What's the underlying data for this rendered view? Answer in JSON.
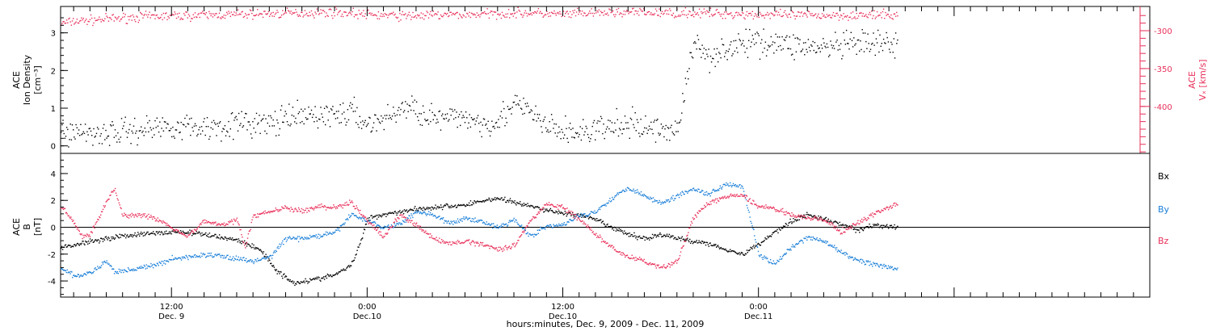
{
  "colors": {
    "black": "#000000",
    "red": "#e8305a",
    "blue": "#1a7fd8"
  },
  "x_axis": {
    "start_hours": 5.2,
    "end_hours": 72,
    "data_end_hours": 56.5,
    "ticks": [
      {
        "time": "12:00",
        "date": "Dec. 9",
        "hours": 12
      },
      {
        "time": "0:00",
        "date": "Dec.10",
        "hours": 24
      },
      {
        "time": "12:00",
        "date": "Dec.10",
        "hours": 36
      },
      {
        "time": "0:00",
        "date": "Dec.11",
        "hours": 48
      }
    ],
    "label": "hours:minutes, Dec. 9, 2009 - Dec. 11, 2009"
  },
  "chart_data": [
    {
      "type": "scatter",
      "panel": "top",
      "left_axis": {
        "label_line1": "ACE",
        "label_line2": "Ion Density",
        "unit": "[cm⁻³]",
        "ylim": [
          -0.2,
          3.7
        ],
        "ticks": [
          "0",
          "1",
          "2",
          "3"
        ]
      },
      "right_axis": {
        "label": "Vₓ [km/s]",
        "label_super": "ACE",
        "ylim": [
          -462,
          -268
        ],
        "ticks": [
          "-300",
          "-350",
          "-400"
        ]
      },
      "series": [
        {
          "color": "red",
          "axis": "right",
          "points": [
            [
              5.2,
              -290
            ],
            [
              6,
              -287
            ],
            [
              8,
              -284
            ],
            [
              10,
              -281
            ],
            [
              12,
              -280
            ],
            [
              14,
              -279
            ],
            [
              16,
              -278
            ],
            [
              18,
              -277
            ],
            [
              20,
              -276
            ],
            [
              22,
              -275
            ],
            [
              24,
              -278
            ],
            [
              26,
              -280
            ],
            [
              28,
              -279
            ],
            [
              30,
              -278
            ],
            [
              32,
              -277
            ],
            [
              34,
              -276
            ],
            [
              36,
              -278
            ],
            [
              38,
              -276
            ],
            [
              40,
              -275
            ],
            [
              42,
              -276
            ],
            [
              44,
              -276
            ],
            [
              46,
              -277
            ],
            [
              48,
              -278
            ],
            [
              50,
              -279
            ],
            [
              52,
              -279
            ],
            [
              54,
              -279
            ],
            [
              56.5,
              -279
            ]
          ]
        },
        {
          "color": "black",
          "axis": "left",
          "points": [
            [
              5.2,
              0.4
            ],
            [
              8,
              0.35
            ],
            [
              10,
              0.45
            ],
            [
              12,
              0.55
            ],
            [
              14,
              0.5
            ],
            [
              16,
              0.6
            ],
            [
              18,
              0.6
            ],
            [
              20,
              0.8
            ],
            [
              22,
              0.85
            ],
            [
              23,
              0.9
            ],
            [
              24,
              0.6
            ],
            [
              25,
              0.7
            ],
            [
              26,
              1.0
            ],
            [
              27,
              1.0
            ],
            [
              28,
              0.75
            ],
            [
              29,
              0.7
            ],
            [
              30,
              0.8
            ],
            [
              31,
              0.6
            ],
            [
              32,
              0.7
            ],
            [
              33,
              1.1
            ],
            [
              34,
              0.9
            ],
            [
              35,
              0.5
            ],
            [
              36,
              0.4
            ],
            [
              37,
              0.35
            ],
            [
              38,
              0.45
            ],
            [
              39,
              0.5
            ],
            [
              40,
              0.6
            ],
            [
              41,
              0.5
            ],
            [
              42,
              0.45
            ],
            [
              43,
              0.45
            ],
            [
              44,
              2.7
            ],
            [
              45,
              2.4
            ],
            [
              46,
              2.6
            ],
            [
              48,
              2.8
            ],
            [
              50,
              2.7
            ],
            [
              52,
              2.6
            ],
            [
              54,
              2.7
            ],
            [
              56.5,
              2.7
            ]
          ]
        }
      ]
    },
    {
      "type": "line",
      "panel": "bottom",
      "y_axis": {
        "label_line1": "ACE",
        "label_line2": "B",
        "unit": "[nT]",
        "ylim": [
          -5.2,
          5.5
        ],
        "ticks": [
          "4",
          "2",
          "0",
          "-2",
          "-4"
        ]
      },
      "zero_line": true,
      "series": [
        {
          "name": "Bx",
          "color": "black",
          "points": [
            [
              5.2,
              -1.5
            ],
            [
              7,
              -1.0
            ],
            [
              9,
              -0.6
            ],
            [
              11,
              -0.4
            ],
            [
              12.5,
              -0.3
            ],
            [
              14,
              -0.5
            ],
            [
              16,
              -0.9
            ],
            [
              17.5,
              -1.7
            ],
            [
              18.5,
              -3.3
            ],
            [
              19.5,
              -4.1
            ],
            [
              21,
              -3.8
            ],
            [
              22,
              -3.5
            ],
            [
              23,
              -2.8
            ],
            [
              23.6,
              -1.0
            ],
            [
              24,
              0.7
            ],
            [
              25,
              1.0
            ],
            [
              26,
              1.2
            ],
            [
              27,
              1.4
            ],
            [
              28,
              1.5
            ],
            [
              29,
              1.6
            ],
            [
              30,
              1.7
            ],
            [
              31,
              2.0
            ],
            [
              32,
              2.2
            ],
            [
              33,
              1.9
            ],
            [
              34,
              1.6
            ],
            [
              35,
              1.3
            ],
            [
              36,
              1.1
            ],
            [
              37,
              0.9
            ],
            [
              38,
              0.6
            ],
            [
              39,
              0.0
            ],
            [
              40,
              -0.5
            ],
            [
              41,
              -0.8
            ],
            [
              42,
              -0.5
            ],
            [
              43,
              -0.8
            ],
            [
              44,
              -1.0
            ],
            [
              45,
              -1.2
            ],
            [
              46,
              -1.6
            ],
            [
              47,
              -2.0
            ],
            [
              48,
              -1.2
            ],
            [
              49,
              -0.3
            ],
            [
              50,
              0.5
            ],
            [
              51,
              1.0
            ],
            [
              52,
              0.6
            ],
            [
              53,
              0.3
            ],
            [
              54,
              -0.2
            ],
            [
              55,
              0.2
            ],
            [
              56.5,
              0.0
            ]
          ]
        },
        {
          "name": "By",
          "color": "blue",
          "points": [
            [
              5.2,
              -3.0
            ],
            [
              6,
              -3.6
            ],
            [
              7,
              -3.4
            ],
            [
              8,
              -2.5
            ],
            [
              8.5,
              -3.3
            ],
            [
              10,
              -3.0
            ],
            [
              11,
              -2.8
            ],
            [
              12,
              -2.3
            ],
            [
              13,
              -2.2
            ],
            [
              14,
              -2.0
            ],
            [
              15,
              -2.1
            ],
            [
              16,
              -2.3
            ],
            [
              17,
              -2.5
            ],
            [
              18,
              -2.2
            ],
            [
              19,
              -0.8
            ],
            [
              20,
              -0.8
            ],
            [
              21,
              -0.6
            ],
            [
              22,
              -0.4
            ],
            [
              23,
              1.0
            ],
            [
              24,
              0.5
            ],
            [
              25,
              0.0
            ],
            [
              26,
              0.3
            ],
            [
              27,
              1.2
            ],
            [
              28,
              1.0
            ],
            [
              29,
              0.3
            ],
            [
              30,
              0.7
            ],
            [
              31,
              0.5
            ],
            [
              32,
              0.0
            ],
            [
              33,
              0.6
            ],
            [
              34,
              -0.6
            ],
            [
              35,
              0.1
            ],
            [
              36,
              0.2
            ],
            [
              37,
              0.9
            ],
            [
              38,
              1.2
            ],
            [
              39,
              2.2
            ],
            [
              40,
              3.0
            ],
            [
              41,
              2.4
            ],
            [
              42,
              1.8
            ],
            [
              43,
              2.4
            ],
            [
              44,
              2.9
            ],
            [
              45,
              2.5
            ],
            [
              46,
              3.3
            ],
            [
              47,
              3.1
            ],
            [
              48,
              -2.0
            ],
            [
              49,
              -2.7
            ],
            [
              50,
              -1.5
            ],
            [
              51,
              -0.7
            ],
            [
              52,
              -1.0
            ],
            [
              53,
              -1.8
            ],
            [
              54,
              -2.4
            ],
            [
              55,
              -2.7
            ],
            [
              56.5,
              -3.1
            ]
          ]
        },
        {
          "name": "Bz",
          "color": "red",
          "points": [
            [
              5.2,
              1.6
            ],
            [
              6,
              0.4
            ],
            [
              6.5,
              -0.7
            ],
            [
              7,
              -0.5
            ],
            [
              8,
              2.0
            ],
            [
              8.5,
              2.9
            ],
            [
              9,
              0.9
            ],
            [
              10,
              1.0
            ],
            [
              11,
              0.7
            ],
            [
              12,
              0.0
            ],
            [
              13,
              -0.6
            ],
            [
              14,
              0.5
            ],
            [
              15,
              0.2
            ],
            [
              16,
              0.6
            ],
            [
              16.5,
              -1.5
            ],
            [
              17,
              0.9
            ],
            [
              18,
              1.2
            ],
            [
              19,
              1.5
            ],
            [
              20,
              1.2
            ],
            [
              21,
              1.6
            ],
            [
              22,
              1.5
            ],
            [
              23,
              1.9
            ],
            [
              24,
              0.5
            ],
            [
              25,
              -0.7
            ],
            [
              26,
              1.0
            ],
            [
              27,
              0.2
            ],
            [
              28,
              -0.8
            ],
            [
              29,
              -1.2
            ],
            [
              30,
              -1.0
            ],
            [
              31,
              -1.2
            ],
            [
              32,
              -1.6
            ],
            [
              33,
              -1.3
            ],
            [
              34,
              0.5
            ],
            [
              35,
              1.8
            ],
            [
              36,
              1.5
            ],
            [
              37,
              0.6
            ],
            [
              38,
              -0.5
            ],
            [
              39,
              -1.5
            ],
            [
              40,
              -2.2
            ],
            [
              41,
              -2.5
            ],
            [
              42,
              -3.0
            ],
            [
              43,
              -2.5
            ],
            [
              44,
              0.8
            ],
            [
              45,
              1.9
            ],
            [
              46,
              2.3
            ],
            [
              47,
              2.4
            ],
            [
              48,
              1.6
            ],
            [
              49,
              1.4
            ],
            [
              50,
              1.0
            ],
            [
              51,
              0.7
            ],
            [
              52,
              0.6
            ],
            [
              53,
              -0.3
            ],
            [
              54,
              0.3
            ],
            [
              55,
              1.0
            ],
            [
              56.5,
              1.8
            ]
          ]
        }
      ]
    }
  ]
}
